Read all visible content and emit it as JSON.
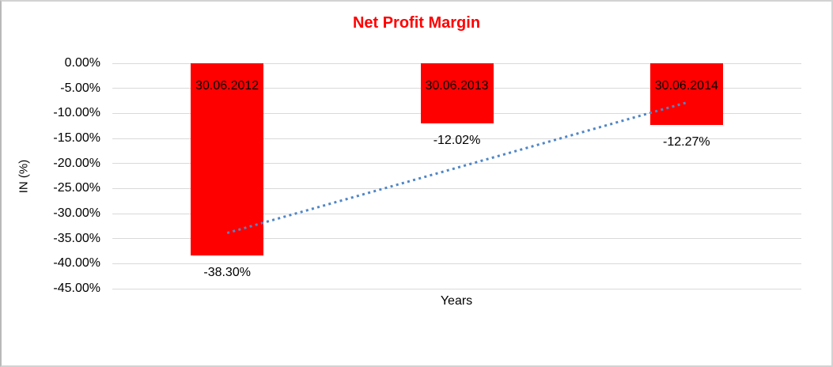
{
  "window": {
    "background": "#ffffff",
    "border_color": "#d2d2d2"
  },
  "chart_data": {
    "type": "bar",
    "title": "Net Profit Margin",
    "title_color": "#ff0000",
    "xlabel": "Years",
    "ylabel": "IN (%)",
    "categories": [
      "30.06.2012",
      "30.06.2013",
      "30.06.2014"
    ],
    "values": [
      -38.3,
      -12.02,
      -12.27
    ],
    "data_labels": [
      "-38.30%",
      "-12.02%",
      "-12.27%"
    ],
    "yticks": [
      "0.00%",
      "-5.00%",
      "-10.00%",
      "-15.00%",
      "-20.00%",
      "-25.00%",
      "-30.00%",
      "-35.00%",
      "-40.00%",
      "-45.00%"
    ],
    "ylim": [
      0,
      -45
    ],
    "grid": true,
    "legend": "none",
    "bar_color": "#ff0000",
    "gridline_color": "#d9d9d9",
    "trendline": {
      "type": "linear",
      "style": "dotted",
      "color": "#4f86c6",
      "start_value": -33.88,
      "end_value": -7.85
    }
  }
}
